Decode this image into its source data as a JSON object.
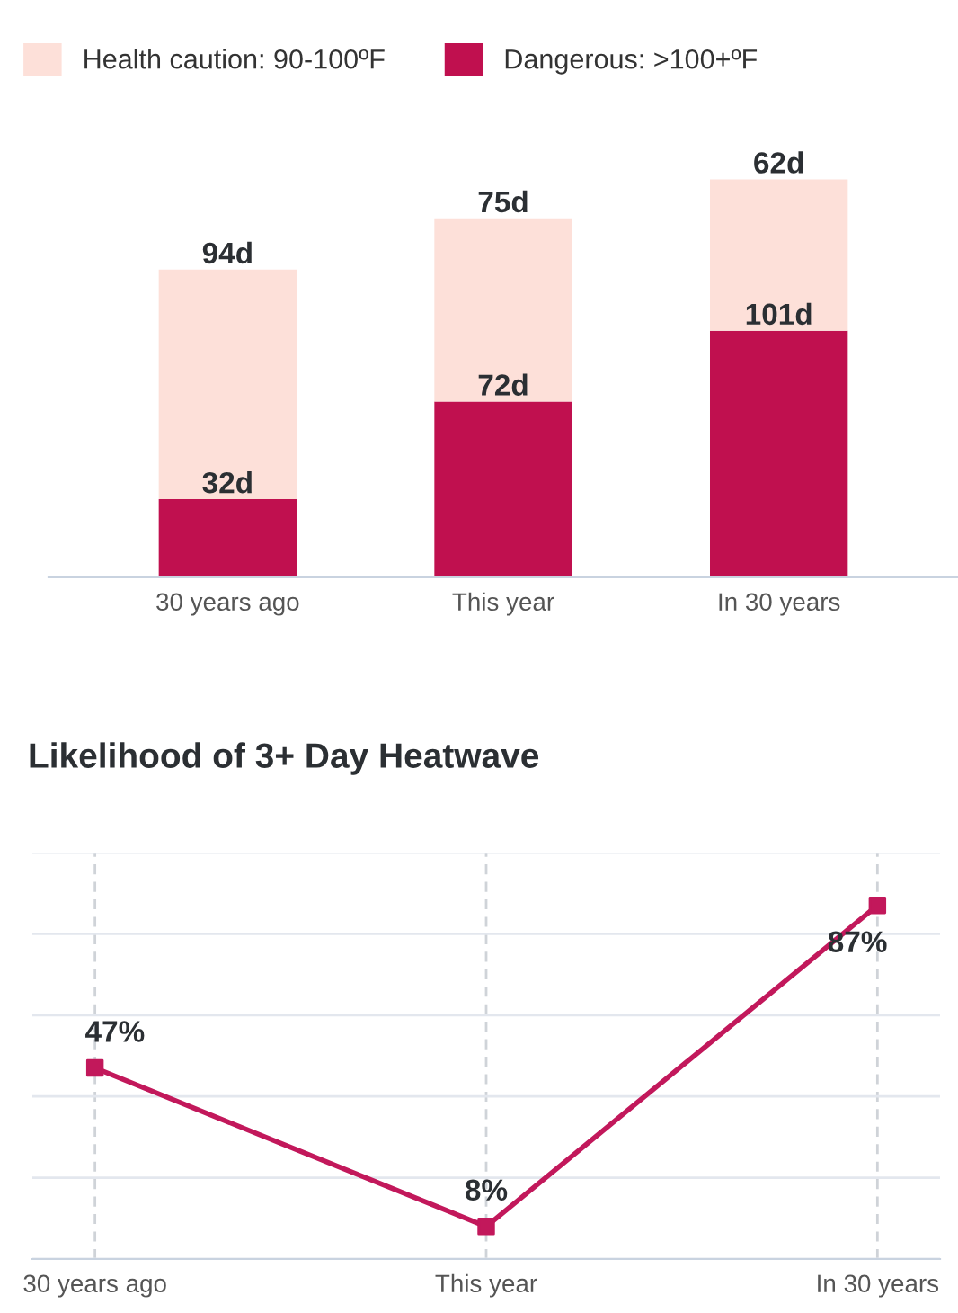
{
  "chart_data": [
    {
      "type": "bar",
      "stacked": true,
      "categories": [
        "30 years ago",
        "This year",
        "In 30 years"
      ],
      "legend": "top left",
      "tick_labels": "x",
      "grid": false,
      "series": [
        {
          "name": "Dangerous: >100+ºF",
          "color": "#c0104f",
          "values": [
            32,
            72,
            101
          ],
          "value_labels": [
            "32d",
            "72d",
            "101d"
          ]
        },
        {
          "name": "Health caution: 90-100ºF",
          "color": "#fde0d9",
          "values": [
            94,
            75,
            62
          ],
          "value_labels": [
            "94d",
            "75d",
            "62d"
          ]
        }
      ]
    },
    {
      "type": "line",
      "title": "Likelihood of 3+ Day Heatwave",
      "categories": [
        "30 years ago",
        "This year",
        "In 30 years"
      ],
      "ylim": [
        0,
        100
      ],
      "yticks": [
        {
          "value": 0,
          "label": null
        },
        {
          "value": 20,
          "label": null
        },
        {
          "value": 40,
          "label": null
        },
        {
          "value": 60,
          "label": null
        },
        {
          "value": 80,
          "label": null
        },
        {
          "value": 100,
          "label": null
        }
      ],
      "tick_labels": "x",
      "grid": true,
      "marker": "square",
      "line_style": "solid",
      "series": [
        {
          "color": "#c2185b",
          "values": [
            47,
            8,
            87
          ],
          "value_labels": [
            "47%",
            "8%",
            "87%"
          ]
        }
      ]
    }
  ]
}
